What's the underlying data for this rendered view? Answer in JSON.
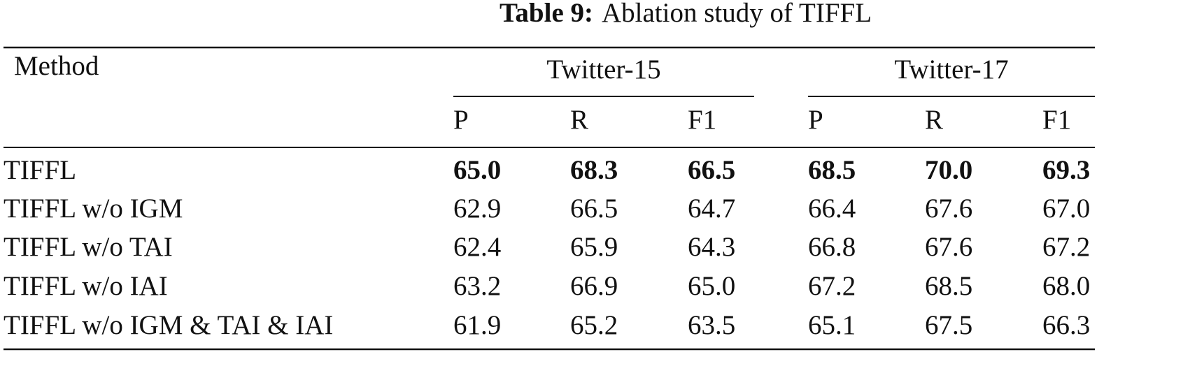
{
  "caption": {
    "label": "Table 9:",
    "text": "Ablation study of TIFFL"
  },
  "table": {
    "header": {
      "method": "Method",
      "groups": [
        "Twitter-15",
        "Twitter-17"
      ],
      "columns": [
        "P",
        "R",
        "F1",
        "P",
        "R",
        "F1"
      ]
    },
    "rows": [
      {
        "method": "TIFFL",
        "values": [
          "65.0",
          "68.3",
          "66.5",
          "68.5",
          "70.0",
          "69.3"
        ],
        "bold": true
      },
      {
        "method": "TIFFL w/o IGM",
        "values": [
          "62.9",
          "66.5",
          "64.7",
          "66.4",
          "67.6",
          "67.0"
        ],
        "bold": false
      },
      {
        "method": "TIFFL w/o TAI",
        "values": [
          "62.4",
          "65.9",
          "64.3",
          "66.8",
          "67.6",
          "67.2"
        ],
        "bold": false
      },
      {
        "method": "TIFFL w/o IAI",
        "values": [
          "63.2",
          "66.9",
          "65.0",
          "67.2",
          "68.5",
          "68.0"
        ],
        "bold": false
      },
      {
        "method": "TIFFL w/o IGM & TAI & IAI",
        "values": [
          "61.9",
          "65.2",
          "63.5",
          "65.1",
          "67.5",
          "66.3"
        ],
        "bold": false
      }
    ]
  }
}
